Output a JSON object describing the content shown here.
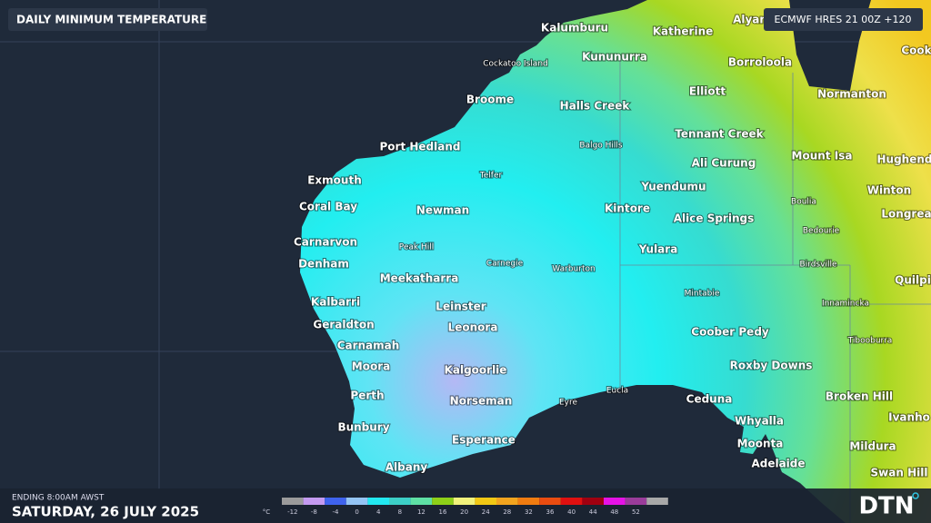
{
  "header": {
    "title": "DAILY MINIMUM TEMPERATURE",
    "model": "ECMWF HRES 21 00Z +120"
  },
  "places": [
    "Kalumburu",
    "Katherine",
    "Alyan",
    "Cockatoo Island",
    "Kununurra",
    "Borroloola",
    "Cook",
    "Broome",
    "Halls Creek",
    "Elliott",
    "Normanton",
    "Port Hedland",
    "Balgo Hills",
    "Tennant Creek",
    "Mount Isa",
    "Hughend",
    "Exmouth",
    "Telfer",
    "Ali Curung",
    "Yuendumu",
    "Winton",
    "Coral Bay",
    "Newman",
    "Kintore",
    "Alice Springs",
    "Boulia",
    "Longrea",
    "Bedourie",
    "Carnarvon",
    "Peak Hill",
    "Yulara",
    "Carnegie",
    "Denham",
    "Warburton",
    "Birdsville",
    "Quilpi",
    "Meekatharra",
    "Mintabie",
    "Kalbarri",
    "Innamincka",
    "Leinster",
    "Geraldton",
    "Leonora",
    "Coober Pedy",
    "Carnamah",
    "Tibooburra",
    "Moora",
    "Roxby Downs",
    "Kalgoorlie",
    "Perth",
    "Broken Hill",
    "Norseman",
    "Eucla",
    "Eyre",
    "Ceduna",
    "Ivanho",
    "Bunbury",
    "Whyalla",
    "Esperance",
    "Moonta",
    "Mildura",
    "Adelaide",
    "Swan Hill",
    "Albany"
  ],
  "footer": {
    "ending": "ENDING 8:00AM AWST",
    "date": "SATURDAY, 26 JULY 2025",
    "logo": "DTN"
  },
  "legend": {
    "unit": "°C",
    "ticks": [
      -12,
      -8,
      -4,
      0,
      4,
      8,
      12,
      16,
      20,
      24,
      28,
      32,
      36,
      40,
      44,
      48,
      52
    ],
    "colors": [
      "#9b9b9b",
      "#c49af0",
      "#3f63ee",
      "#94c4f4",
      "#22e8f0",
      "#3ccfc6",
      "#5ee0a4",
      "#8ed018",
      "#f2f27c",
      "#f2c814",
      "#f2a41e",
      "#f07c10",
      "#ea4c10",
      "#e01010",
      "#a00010",
      "#e612e6",
      "#9a3c9a",
      "#a8a8a8"
    ]
  }
}
